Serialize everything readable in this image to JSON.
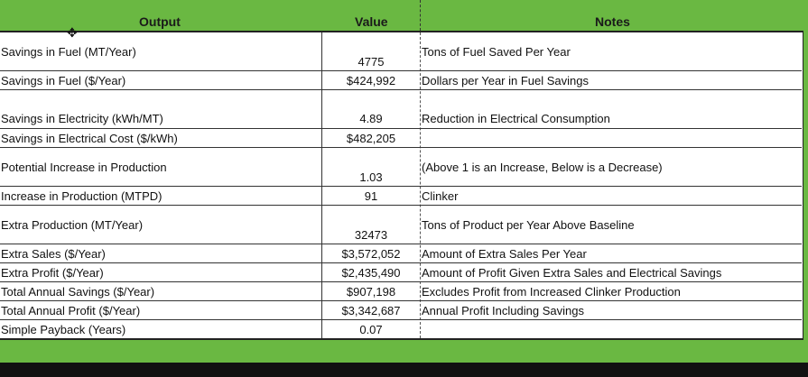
{
  "header": {
    "output": "Output",
    "value": "Value",
    "notes": "Notes"
  },
  "rows": [
    {
      "output": "Savings in Fuel (MT/Year)",
      "value": "4775",
      "note": "Tons of Fuel Saved Per Year"
    },
    {
      "output": "Savings in Fuel ($/Year)",
      "value": "$424,992",
      "note": "Dollars per Year in Fuel Savings"
    },
    {
      "output": "Savings in Electricity (kWh/MT)",
      "value": "4.89",
      "note": "Reduction in Electrical Consumption"
    },
    {
      "output": "Savings in Electrical Cost ($/kWh)",
      "value": "$482,205",
      "note": ""
    },
    {
      "output": "Potential Increase in Production",
      "value": "1.03",
      "note": "(Above 1 is an Increase, Below is a Decrease)"
    },
    {
      "output": "Increase in Production (MTPD)",
      "value": "91",
      "note": "Clinker"
    },
    {
      "output": "Extra Production (MT/Year)",
      "value": "32473",
      "note": "Tons of Product per Year Above Baseline"
    },
    {
      "output": "Extra Sales ($/Year)",
      "value": "$3,572,052",
      "note": "Amount of Extra Sales Per Year"
    },
    {
      "output": "Extra Profit ($/Year)",
      "value": "$2,435,490",
      "note": "Amount of Profit Given Extra Sales and Electrical Savings"
    },
    {
      "output": "Total Annual Savings ($/Year)",
      "value": "$907,198",
      "note": "Excludes Profit from Increased Clinker Production"
    },
    {
      "output": "Total Annual Profit ($/Year)",
      "value": "$3,342,687",
      "note": "Annual Profit Including Savings"
    },
    {
      "output": "Simple Payback (Years)",
      "value": "0.07",
      "note": ""
    }
  ]
}
